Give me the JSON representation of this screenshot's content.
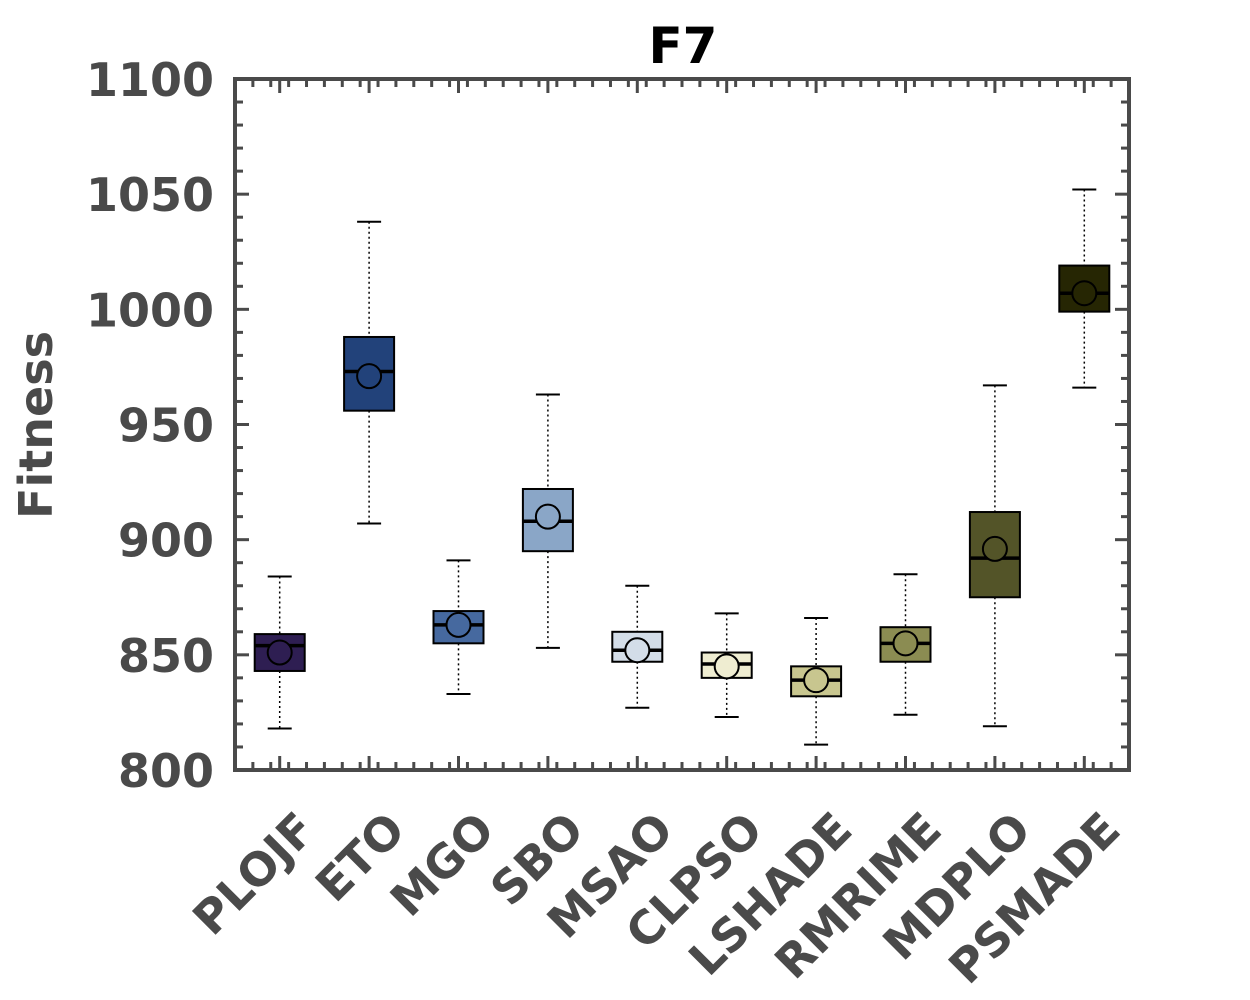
{
  "chart_data": {
    "type": "box",
    "title": "F7",
    "xlabel": "",
    "ylabel": "Fitness",
    "ylim": [
      800,
      1100
    ],
    "yticks": [
      800,
      850,
      900,
      950,
      1000,
      1050,
      1100
    ],
    "grid": false,
    "categories": [
      "PLOJF",
      "ETO",
      "MGO",
      "SBO",
      "MSAO",
      "CLPSO",
      "LSHADE",
      "RMRIME",
      "MDPLO",
      "PSMADE"
    ],
    "series": [
      {
        "whisker_low": 818,
        "q1": 843,
        "median": 854,
        "q3": 859,
        "whisker_high": 884,
        "mean": 851,
        "color": "#2e1e52"
      },
      {
        "whisker_low": 907,
        "q1": 956,
        "median": 973,
        "q3": 988,
        "whisker_high": 1038,
        "mean": 971,
        "color": "#22427a"
      },
      {
        "whisker_low": 833,
        "q1": 855,
        "median": 863,
        "q3": 869,
        "whisker_high": 891,
        "mean": 863,
        "color": "#46699f"
      },
      {
        "whisker_low": 853,
        "q1": 895,
        "median": 908,
        "q3": 922,
        "whisker_high": 963,
        "mean": 910,
        "color": "#8aa6c7"
      },
      {
        "whisker_low": 827,
        "q1": 847,
        "median": 852,
        "q3": 860,
        "whisker_high": 880,
        "mean": 852,
        "color": "#d3dde8"
      },
      {
        "whisker_low": 823,
        "q1": 840,
        "median": 846,
        "q3": 851,
        "whisker_high": 868,
        "mean": 845,
        "color": "#efedd1"
      },
      {
        "whisker_low": 811,
        "q1": 832,
        "median": 839,
        "q3": 845,
        "whisker_high": 866,
        "mean": 839,
        "color": "#c8c68f"
      },
      {
        "whisker_low": 824,
        "q1": 847,
        "median": 855,
        "q3": 862,
        "whisker_high": 885,
        "mean": 855,
        "color": "#8b8c52"
      },
      {
        "whisker_low": 819,
        "q1": 875,
        "median": 892,
        "q3": 912,
        "whisker_high": 967,
        "mean": 896,
        "color": "#535428"
      },
      {
        "whisker_low": 966,
        "q1": 999,
        "median": 1007,
        "q3": 1019,
        "whisker_high": 1052,
        "mean": 1007,
        "color": "#262603"
      }
    ]
  }
}
